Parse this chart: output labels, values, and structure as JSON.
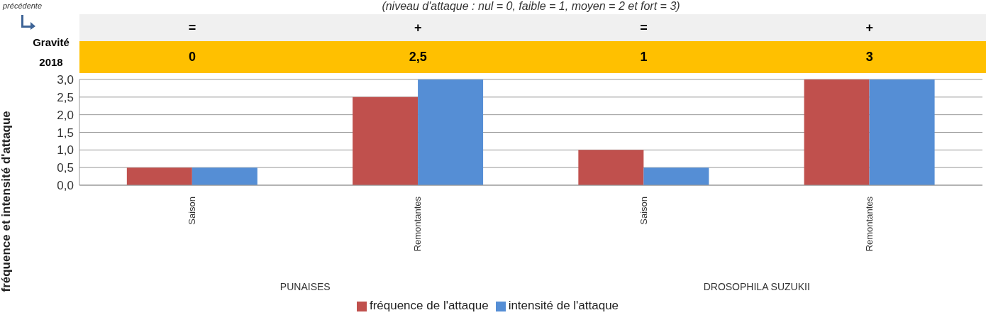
{
  "chart_data": {
    "type": "bar",
    "title": "(niveau d'attaque : nul = 0, faible = 1, moyen = 2 et fort = 3)",
    "ylabel": "fréquence et intensité d'attaque",
    "categories": [
      "Saison",
      "Remontantes",
      "Saison",
      "Remontantes"
    ],
    "series": [
      {
        "name": "fréquence de l'attaque",
        "color": "#c0504d",
        "values": [
          0.5,
          2.5,
          1,
          3
        ]
      },
      {
        "name": "intensité de l'attaque",
        "color": "#558ed5",
        "values": [
          0.5,
          3,
          0.5,
          3
        ]
      }
    ],
    "ylim": [
      0,
      3
    ],
    "yticks": [
      {
        "value": 0,
        "label": "0,0"
      },
      {
        "value": 0.5,
        "label": "0,5"
      },
      {
        "value": 1,
        "label": "1,0"
      },
      {
        "value": 1.5,
        "label": "1,5"
      },
      {
        "value": 2,
        "label": "2,0"
      },
      {
        "value": 2.5,
        "label": "2,5"
      },
      {
        "value": 3,
        "label": "3,0"
      }
    ],
    "grid": "y",
    "legend": "bottom",
    "annotations": [
      "précédente",
      "Gravité 2018",
      "=",
      "+",
      "=",
      "+",
      "0",
      "2,5",
      "1",
      "3",
      "PUNAISES",
      "DROSOPHILA SUZUKII"
    ]
  }
}
